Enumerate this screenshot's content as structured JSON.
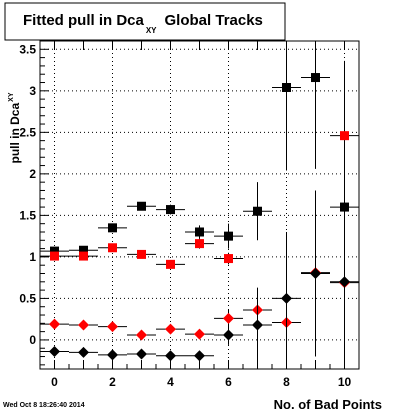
{
  "timestamp": "Wed Oct  8 18:26:40 2014",
  "chart_data": {
    "type": "scatter",
    "title": {
      "main": "Fitted pull in Dca",
      "subscript": "XY",
      "suffix": "Global Tracks"
    },
    "ylabel": {
      "main": "pull in Dca",
      "subscript": "XY"
    },
    "xlabel": "No. of Bad Points",
    "xlim": [
      -0.5,
      10.5
    ],
    "ylim": [
      -0.35,
      3.6
    ],
    "x_ticks": [
      0,
      2,
      4,
      6,
      8,
      10
    ],
    "y_ticks": [
      0,
      0.5,
      1,
      1.5,
      2,
      2.5,
      3,
      3.5
    ],
    "y_tick_labels": [
      "0",
      "0.5",
      "1",
      "1.5",
      "2",
      "2.5",
      "3",
      "3.5"
    ],
    "grid": true,
    "colors": {
      "black_series": "#000000",
      "red_series": "#ff0000",
      "frame": "#000000",
      "background": "#ffffff"
    },
    "series": [
      {
        "marker": "square",
        "color": "#000000",
        "points": [
          {
            "x": 0,
            "y": 1.07,
            "yerr": 0.03
          },
          {
            "x": 1,
            "y": 1.08,
            "yerr": 0.03
          },
          {
            "x": 2,
            "y": 1.35,
            "yerr": 0.04
          },
          {
            "x": 3,
            "y": 1.61,
            "yerr": 0.05
          },
          {
            "x": 4,
            "y": 1.57,
            "yerr": 0.06
          },
          {
            "x": 5,
            "y": 1.3,
            "yerr": 0.08
          },
          {
            "x": 6,
            "y": 1.25,
            "yerr": 0.15
          },
          {
            "x": 7,
            "y": 1.55,
            "yerr": 0.35
          },
          {
            "x": 8,
            "y": 3.04,
            "yerr": 1.0
          },
          {
            "x": 9,
            "y": 3.16,
            "yerr": 1.1
          },
          {
            "x": 10,
            "y": 1.6,
            "yerr": 0.3
          }
        ]
      },
      {
        "marker": "square",
        "color": "#ff0000",
        "points": [
          {
            "x": 0,
            "y": 1.01,
            "yerr": 0.03
          },
          {
            "x": 1,
            "y": 1.01,
            "yerr": 0.03
          },
          {
            "x": 2,
            "y": 1.11,
            "yerr": 0.04
          },
          {
            "x": 3,
            "y": 1.03,
            "yerr": 0.04
          },
          {
            "x": 4,
            "y": 0.91,
            "yerr": 0.04
          },
          {
            "x": 5,
            "y": 1.16,
            "yerr": 0.06
          },
          {
            "x": 6,
            "y": 0.98,
            "yerr": 0.07
          },
          {
            "x": 10,
            "y": 2.46,
            "yerr": 0.9
          }
        ]
      },
      {
        "marker": "diamond",
        "color": "#ff0000",
        "points": [
          {
            "x": 0,
            "y": 0.19,
            "yerr": 0.02
          },
          {
            "x": 1,
            "y": 0.18,
            "yerr": 0.02
          },
          {
            "x": 2,
            "y": 0.16,
            "yerr": 0.03
          },
          {
            "x": 3,
            "y": 0.06,
            "yerr": 0.03
          },
          {
            "x": 4,
            "y": 0.13,
            "yerr": 0.04
          },
          {
            "x": 5,
            "y": 0.07,
            "yerr": 0.05
          },
          {
            "x": 6,
            "y": 0.26,
            "yerr": 0.1
          },
          {
            "x": 7,
            "y": 0.36,
            "yerr": 0.2
          },
          {
            "x": 8,
            "y": 0.21,
            "yerr": 0.45
          },
          {
            "x": 9,
            "y": 0.81,
            "yerr": 0.6
          },
          {
            "x": 10,
            "y": 0.69,
            "yerr": 0.9
          }
        ]
      },
      {
        "marker": "diamond",
        "color": "#000000",
        "points": [
          {
            "x": 0,
            "y": -0.14,
            "yerr": 0.02
          },
          {
            "x": 1,
            "y": -0.15,
            "yerr": 0.02
          },
          {
            "x": 2,
            "y": -0.18,
            "yerr": 0.03
          },
          {
            "x": 3,
            "y": -0.17,
            "yerr": 0.03
          },
          {
            "x": 4,
            "y": -0.19,
            "yerr": 0.04
          },
          {
            "x": 5,
            "y": -0.19,
            "yerr": 0.05
          },
          {
            "x": 6,
            "y": 0.06,
            "yerr": 0.12
          },
          {
            "x": 7,
            "y": 0.18,
            "yerr": 0.45
          },
          {
            "x": 8,
            "y": 0.5,
            "yerr": 0.8
          },
          {
            "x": 9,
            "y": 0.8,
            "yerr": 1.0
          },
          {
            "x": 10,
            "y": 0.7,
            "yerr": 1.2
          }
        ]
      }
    ]
  }
}
